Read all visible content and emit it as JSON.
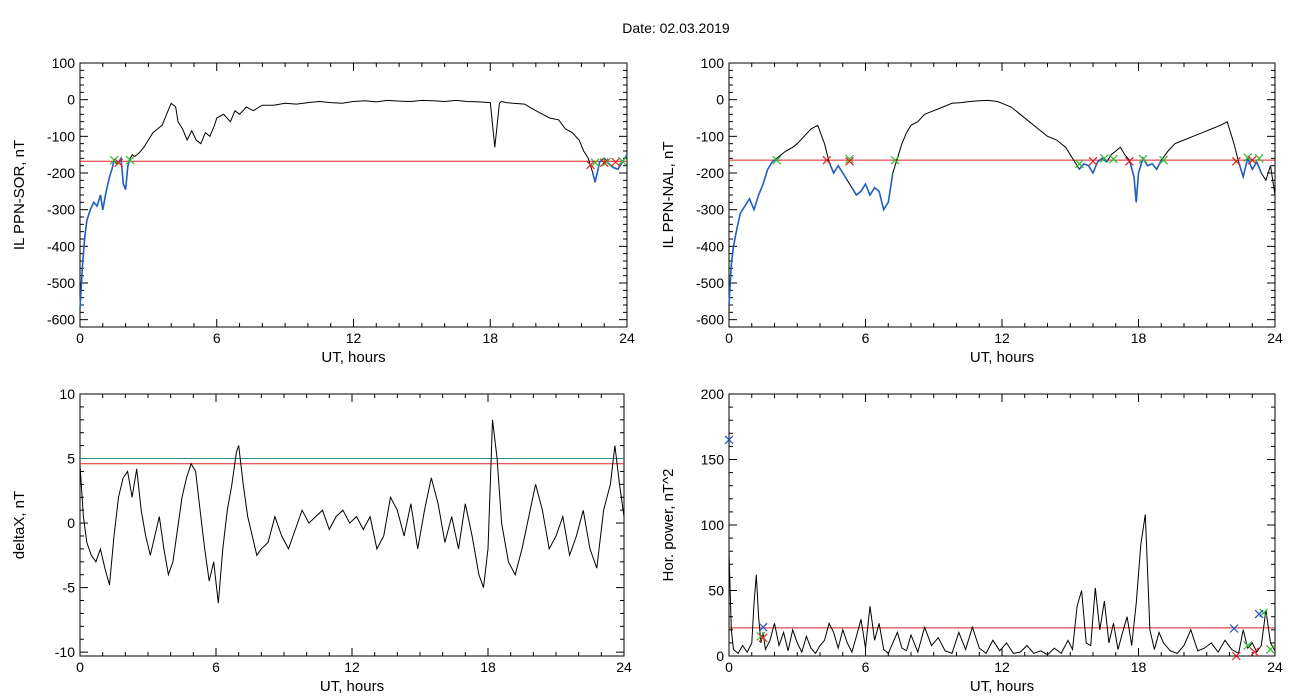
{
  "figure": {
    "title": "Date:  02.03.2019"
  },
  "colors": {
    "curve": "#000000",
    "segment": "#1f5fbf",
    "threshold": "#e02020",
    "threshold2": "#2a8f8f",
    "start_marker": "#33bb33",
    "end_marker": "#e02020",
    "extra_marker": "#2050c0"
  },
  "chart_data": [
    {
      "type": "line",
      "id": "il-sor",
      "ylabel": "IL PPN-SOR, nT",
      "xlabel": "UT, hours",
      "xlim": [
        0,
        24
      ],
      "ylim": [
        -620,
        100
      ],
      "xticks": [
        0,
        6,
        12,
        18,
        24
      ],
      "yticks": [
        100,
        0,
        -100,
        -200,
        -300,
        -400,
        -500,
        -600
      ],
      "threshold": -168,
      "series": [
        {
          "x": [
            0.0,
            0.1,
            0.2,
            0.3,
            0.45,
            0.6,
            0.75,
            0.9,
            1.0,
            1.15,
            1.3,
            1.4,
            1.5,
            1.6,
            1.7,
            1.8,
            1.9,
            2.0,
            2.1,
            2.2,
            2.3,
            2.4,
            2.6,
            2.8,
            3.0,
            3.2,
            3.4,
            3.6,
            3.8,
            4.0,
            4.2,
            4.3,
            4.5,
            4.7,
            4.9,
            5.1,
            5.3,
            5.5,
            5.7,
            5.9,
            6.0,
            6.3,
            6.6,
            6.8,
            7.0,
            7.3,
            7.6,
            8.0,
            8.5,
            9.0,
            9.5,
            10.0,
            10.5,
            11.0,
            11.5,
            12.0,
            12.5,
            13.0,
            13.5,
            14.0,
            14.5,
            15.0,
            15.5,
            16.0,
            16.5,
            17.0,
            17.5,
            18.0,
            18.2,
            18.4,
            18.5,
            18.7,
            19.0,
            19.5,
            20.0,
            20.3,
            20.6,
            21.0,
            21.3,
            21.6,
            21.9,
            22.1,
            22.3,
            22.5,
            22.6,
            22.8,
            23.0,
            23.2,
            23.4,
            23.6,
            23.8,
            24.0
          ],
          "values": [
            -570,
            -460,
            -380,
            -330,
            -300,
            -280,
            -290,
            -260,
            -300,
            -250,
            -210,
            -190,
            -165,
            -175,
            -170,
            -160,
            -230,
            -245,
            -180,
            -160,
            -150,
            -155,
            -145,
            -130,
            -110,
            -90,
            -80,
            -70,
            -40,
            -10,
            -20,
            -60,
            -80,
            -110,
            -85,
            -110,
            -120,
            -90,
            -100,
            -70,
            -50,
            -40,
            -60,
            -30,
            -40,
            -20,
            -30,
            -15,
            -15,
            -10,
            -12,
            -8,
            -5,
            -8,
            -10,
            -5,
            -3,
            -6,
            -2,
            -4,
            -5,
            -2,
            -3,
            -5,
            -2,
            -5,
            -6,
            -8,
            -130,
            -10,
            -5,
            -8,
            -10,
            -12,
            -30,
            -40,
            -50,
            -55,
            -80,
            -90,
            -110,
            -140,
            -160,
            -200,
            -225,
            -170,
            -160,
            -175,
            -185,
            -190,
            -170,
            -150
          ]
        }
      ],
      "highlight_segments": [
        [
          0.0,
          1.5
        ],
        [
          1.7,
          2.2
        ],
        [
          22.4,
          24.0
        ]
      ],
      "start_markers": [
        [
          1.5,
          -165
        ],
        [
          2.2,
          -165
        ],
        [
          22.6,
          -172
        ],
        [
          23.1,
          -170
        ],
        [
          23.8,
          -168
        ]
      ],
      "end_markers": [
        [
          1.7,
          -172
        ],
        [
          22.4,
          -178
        ],
        [
          23.0,
          -172
        ],
        [
          23.5,
          -170
        ]
      ]
    },
    {
      "type": "line",
      "id": "il-nal",
      "ylabel": "IL PPN-NAL, nT",
      "xlabel": "UT, hours",
      "xlim": [
        0,
        24
      ],
      "ylim": [
        -620,
        100
      ],
      "xticks": [
        0,
        6,
        12,
        18,
        24
      ],
      "yticks": [
        100,
        0,
        -100,
        -200,
        -300,
        -400,
        -500,
        -600
      ],
      "threshold": -165,
      "series": [
        {
          "x": [
            0.0,
            0.1,
            0.2,
            0.35,
            0.5,
            0.7,
            0.9,
            1.1,
            1.3,
            1.5,
            1.7,
            1.9,
            2.1,
            2.3,
            2.5,
            2.8,
            3.0,
            3.3,
            3.6,
            3.9,
            4.2,
            4.4,
            4.6,
            4.8,
            5.0,
            5.2,
            5.4,
            5.6,
            5.8,
            6.0,
            6.2,
            6.4,
            6.6,
            6.8,
            7.0,
            7.2,
            7.4,
            7.6,
            7.8,
            8.0,
            8.3,
            8.6,
            9.0,
            9.4,
            9.8,
            10.2,
            10.6,
            11.0,
            11.4,
            11.8,
            12.0,
            12.4,
            12.8,
            13.2,
            13.6,
            14.0,
            14.4,
            14.8,
            15.2,
            15.4,
            15.6,
            15.8,
            16.0,
            16.2,
            16.4,
            16.6,
            16.8,
            17.0,
            17.2,
            17.4,
            17.6,
            17.8,
            17.9,
            18.0,
            18.2,
            18.4,
            18.6,
            18.8,
            19.0,
            19.3,
            19.6,
            20.0,
            20.4,
            20.8,
            21.2,
            21.6,
            21.9,
            22.2,
            22.4,
            22.6,
            22.8,
            23.0,
            23.2,
            23.4,
            23.6,
            23.8,
            24.0
          ],
          "values": [
            -560,
            -450,
            -400,
            -350,
            -310,
            -290,
            -270,
            -300,
            -260,
            -230,
            -190,
            -170,
            -160,
            -150,
            -140,
            -130,
            -120,
            -100,
            -80,
            -70,
            -120,
            -170,
            -200,
            -180,
            -200,
            -220,
            -240,
            -260,
            -250,
            -230,
            -260,
            -240,
            -250,
            -300,
            -280,
            -200,
            -160,
            -120,
            -90,
            -70,
            -60,
            -40,
            -30,
            -20,
            -10,
            -8,
            -5,
            -3,
            -2,
            -5,
            -10,
            -20,
            -40,
            -60,
            -80,
            -100,
            -110,
            -130,
            -170,
            -190,
            -175,
            -180,
            -200,
            -170,
            -160,
            -170,
            -150,
            -140,
            -130,
            -150,
            -165,
            -210,
            -280,
            -200,
            -160,
            -180,
            -175,
            -190,
            -165,
            -140,
            -120,
            -110,
            -100,
            -90,
            -80,
            -70,
            -60,
            -120,
            -170,
            -210,
            -160,
            -190,
            -170,
            -200,
            -220,
            -180,
            -260
          ]
        }
      ],
      "highlight_segments": [
        [
          0.0,
          2.1
        ],
        [
          4.3,
          5.3
        ],
        [
          5.3,
          7.3
        ],
        [
          15.4,
          16.6
        ],
        [
          17.6,
          19.1
        ],
        [
          22.3,
          23.4
        ]
      ],
      "start_markers": [
        [
          2.1,
          -165
        ],
        [
          5.3,
          -162
        ],
        [
          7.3,
          -165
        ],
        [
          15.4,
          -175
        ],
        [
          16.5,
          -160
        ],
        [
          16.9,
          -162
        ],
        [
          18.2,
          -162
        ],
        [
          19.1,
          -165
        ],
        [
          22.8,
          -158
        ],
        [
          23.3,
          -160
        ]
      ],
      "end_markers": [
        [
          4.3,
          -165
        ],
        [
          5.3,
          -168
        ],
        [
          16.0,
          -168
        ],
        [
          17.6,
          -168
        ],
        [
          22.3,
          -168
        ],
        [
          23.0,
          -165
        ]
      ]
    },
    {
      "type": "line",
      "id": "deltax",
      "ylabel": "deltaX, nT",
      "xlabel": "UT, hours",
      "xlim": [
        0,
        24
      ],
      "ylim": [
        -10.3,
        10
      ],
      "xticks": [
        0,
        6,
        12,
        18,
        24
      ],
      "yticks": [
        10,
        5,
        0,
        -5,
        -10
      ],
      "threshold": 4.6,
      "threshold2": 5.0,
      "series": [
        {
          "x": [
            0.0,
            0.15,
            0.3,
            0.5,
            0.7,
            0.9,
            1.1,
            1.3,
            1.5,
            1.7,
            1.9,
            2.1,
            2.3,
            2.5,
            2.7,
            2.9,
            3.1,
            3.3,
            3.5,
            3.7,
            3.9,
            4.1,
            4.3,
            4.5,
            4.7,
            4.9,
            5.1,
            5.3,
            5.5,
            5.7,
            5.9,
            6.1,
            6.3,
            6.5,
            6.7,
            6.9,
            7.0,
            7.2,
            7.4,
            7.6,
            7.8,
            8.0,
            8.3,
            8.6,
            8.9,
            9.2,
            9.5,
            9.8,
            10.1,
            10.4,
            10.7,
            11.0,
            11.3,
            11.6,
            11.9,
            12.2,
            12.5,
            12.8,
            13.1,
            13.4,
            13.7,
            14.0,
            14.3,
            14.6,
            14.9,
            15.2,
            15.5,
            15.8,
            16.1,
            16.4,
            16.7,
            17.0,
            17.3,
            17.6,
            17.8,
            18.0,
            18.1,
            18.2,
            18.4,
            18.6,
            18.9,
            19.2,
            19.5,
            19.8,
            20.1,
            20.4,
            20.7,
            21.0,
            21.3,
            21.6,
            21.9,
            22.2,
            22.5,
            22.8,
            23.1,
            23.4,
            23.6,
            23.8,
            24.0
          ],
          "values": [
            4.5,
            0.5,
            -1.5,
            -2.5,
            -3.0,
            -2.0,
            -3.5,
            -4.8,
            -1.0,
            2.0,
            3.5,
            4.0,
            2.0,
            4.2,
            1.0,
            -1.0,
            -2.5,
            -1.0,
            0.5,
            -2.0,
            -4.0,
            -3.0,
            -0.5,
            2.0,
            3.5,
            4.6,
            4.0,
            1.0,
            -2.0,
            -4.5,
            -3.0,
            -6.2,
            -2.0,
            1.0,
            3.0,
            5.5,
            6.0,
            3.0,
            0.5,
            -1.0,
            -2.5,
            -2.0,
            -1.5,
            0.5,
            -1.0,
            -2.0,
            -0.5,
            1.0,
            0.0,
            0.5,
            1.0,
            -0.5,
            0.5,
            1.0,
            0.0,
            0.5,
            -0.5,
            0.5,
            -2.0,
            -1.0,
            2.0,
            1.0,
            -1.0,
            1.5,
            -2.0,
            1.0,
            3.5,
            1.5,
            -1.5,
            0.5,
            -2.0,
            1.5,
            -1.0,
            -4.0,
            -5.0,
            -2.0,
            3.0,
            8.0,
            5.0,
            0.0,
            -3.0,
            -4.0,
            -2.0,
            0.5,
            3.0,
            1.0,
            -2.0,
            -1.0,
            0.5,
            -2.5,
            -1.0,
            1.0,
            -2.0,
            -3.5,
            1.0,
            3.0,
            6.0,
            3.0,
            0.5
          ]
        }
      ]
    },
    {
      "type": "line",
      "id": "hor-power",
      "ylabel": "Hor. power, nT^2",
      "xlabel": "UT, hours",
      "xlim": [
        0,
        24
      ],
      "ylim": [
        0,
        200
      ],
      "xticks": [
        0,
        6,
        12,
        18,
        24
      ],
      "yticks": [
        200,
        150,
        100,
        50,
        0
      ],
      "threshold": 21.5,
      "series": [
        {
          "x": [
            0.0,
            0.1,
            0.2,
            0.4,
            0.6,
            0.8,
            1.0,
            1.1,
            1.2,
            1.3,
            1.4,
            1.5,
            1.6,
            1.8,
            2.0,
            2.2,
            2.4,
            2.6,
            2.8,
            3.0,
            3.2,
            3.4,
            3.6,
            3.8,
            4.0,
            4.2,
            4.4,
            4.6,
            4.8,
            5.0,
            5.2,
            5.4,
            5.6,
            5.8,
            6.0,
            6.2,
            6.4,
            6.6,
            6.8,
            7.0,
            7.2,
            7.4,
            7.6,
            7.8,
            8.0,
            8.3,
            8.6,
            8.9,
            9.2,
            9.5,
            9.8,
            10.1,
            10.4,
            10.7,
            11.0,
            11.3,
            11.6,
            11.9,
            12.2,
            12.5,
            12.8,
            13.1,
            13.4,
            13.7,
            14.0,
            14.3,
            14.6,
            14.9,
            15.1,
            15.3,
            15.5,
            15.7,
            15.9,
            16.1,
            16.3,
            16.5,
            16.7,
            16.9,
            17.1,
            17.3,
            17.5,
            17.7,
            17.9,
            18.1,
            18.3,
            18.5,
            18.7,
            18.9,
            19.1,
            19.4,
            19.7,
            20.0,
            20.3,
            20.6,
            20.9,
            21.2,
            21.5,
            21.8,
            22.1,
            22.4,
            22.6,
            22.8,
            23.0,
            23.2,
            23.4,
            23.6,
            23.8,
            24.0
          ],
          "values": [
            80,
            20,
            5,
            2,
            8,
            3,
            10,
            40,
            62,
            30,
            10,
            18,
            5,
            12,
            25,
            8,
            18,
            4,
            20,
            10,
            3,
            15,
            6,
            2,
            8,
            12,
            25,
            18,
            6,
            20,
            10,
            3,
            15,
            28,
            6,
            38,
            12,
            25,
            5,
            2,
            10,
            18,
            6,
            4,
            16,
            3,
            22,
            8,
            14,
            4,
            2,
            18,
            5,
            22,
            6,
            2,
            12,
            4,
            10,
            2,
            3,
            8,
            2,
            4,
            1,
            6,
            2,
            12,
            5,
            38,
            50,
            10,
            8,
            52,
            20,
            42,
            10,
            25,
            5,
            18,
            30,
            8,
            40,
            85,
            108,
            20,
            5,
            18,
            10,
            4,
            2,
            8,
            20,
            4,
            6,
            10,
            3,
            12,
            5,
            2,
            20,
            6,
            10,
            3,
            8,
            35,
            10,
            4
          ]
        }
      ],
      "start_markers": [
        [
          1.4,
          15
        ],
        [
          22.8,
          8
        ],
        [
          23.5,
          33
        ],
        [
          23.8,
          5
        ]
      ],
      "end_markers": [
        [
          1.5,
          14
        ],
        [
          22.3,
          0
        ],
        [
          23.1,
          3
        ]
      ],
      "extra_markers": [
        [
          0.0,
          165
        ],
        [
          1.5,
          22
        ],
        [
          22.2,
          21
        ],
        [
          23.3,
          32
        ]
      ]
    }
  ]
}
